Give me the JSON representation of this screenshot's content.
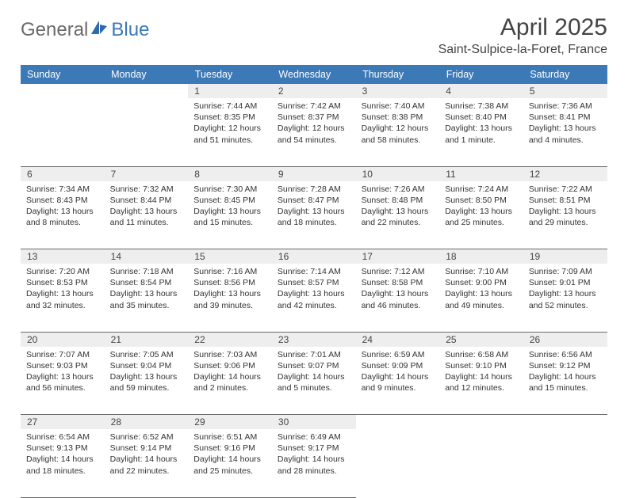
{
  "brand": {
    "part1": "General",
    "part2": "Blue"
  },
  "title": "April 2025",
  "location": "Saint-Sulpice-la-Foret, France",
  "colors": {
    "headerBg": "#3b79b7",
    "dayNumBg": "#eeeeee",
    "border": "#6a6a6a",
    "text": "#333333"
  },
  "weekdays": [
    "Sunday",
    "Monday",
    "Tuesday",
    "Wednesday",
    "Thursday",
    "Friday",
    "Saturday"
  ],
  "weeks": [
    [
      null,
      null,
      {
        "n": "1",
        "sr": "7:44 AM",
        "ss": "8:35 PM",
        "dl": "12 hours and 51 minutes."
      },
      {
        "n": "2",
        "sr": "7:42 AM",
        "ss": "8:37 PM",
        "dl": "12 hours and 54 minutes."
      },
      {
        "n": "3",
        "sr": "7:40 AM",
        "ss": "8:38 PM",
        "dl": "12 hours and 58 minutes."
      },
      {
        "n": "4",
        "sr": "7:38 AM",
        "ss": "8:40 PM",
        "dl": "13 hours and 1 minute."
      },
      {
        "n": "5",
        "sr": "7:36 AM",
        "ss": "8:41 PM",
        "dl": "13 hours and 4 minutes."
      }
    ],
    [
      {
        "n": "6",
        "sr": "7:34 AM",
        "ss": "8:43 PM",
        "dl": "13 hours and 8 minutes."
      },
      {
        "n": "7",
        "sr": "7:32 AM",
        "ss": "8:44 PM",
        "dl": "13 hours and 11 minutes."
      },
      {
        "n": "8",
        "sr": "7:30 AM",
        "ss": "8:45 PM",
        "dl": "13 hours and 15 minutes."
      },
      {
        "n": "9",
        "sr": "7:28 AM",
        "ss": "8:47 PM",
        "dl": "13 hours and 18 minutes."
      },
      {
        "n": "10",
        "sr": "7:26 AM",
        "ss": "8:48 PM",
        "dl": "13 hours and 22 minutes."
      },
      {
        "n": "11",
        "sr": "7:24 AM",
        "ss": "8:50 PM",
        "dl": "13 hours and 25 minutes."
      },
      {
        "n": "12",
        "sr": "7:22 AM",
        "ss": "8:51 PM",
        "dl": "13 hours and 29 minutes."
      }
    ],
    [
      {
        "n": "13",
        "sr": "7:20 AM",
        "ss": "8:53 PM",
        "dl": "13 hours and 32 minutes."
      },
      {
        "n": "14",
        "sr": "7:18 AM",
        "ss": "8:54 PM",
        "dl": "13 hours and 35 minutes."
      },
      {
        "n": "15",
        "sr": "7:16 AM",
        "ss": "8:56 PM",
        "dl": "13 hours and 39 minutes."
      },
      {
        "n": "16",
        "sr": "7:14 AM",
        "ss": "8:57 PM",
        "dl": "13 hours and 42 minutes."
      },
      {
        "n": "17",
        "sr": "7:12 AM",
        "ss": "8:58 PM",
        "dl": "13 hours and 46 minutes."
      },
      {
        "n": "18",
        "sr": "7:10 AM",
        "ss": "9:00 PM",
        "dl": "13 hours and 49 minutes."
      },
      {
        "n": "19",
        "sr": "7:09 AM",
        "ss": "9:01 PM",
        "dl": "13 hours and 52 minutes."
      }
    ],
    [
      {
        "n": "20",
        "sr": "7:07 AM",
        "ss": "9:03 PM",
        "dl": "13 hours and 56 minutes."
      },
      {
        "n": "21",
        "sr": "7:05 AM",
        "ss": "9:04 PM",
        "dl": "13 hours and 59 minutes."
      },
      {
        "n": "22",
        "sr": "7:03 AM",
        "ss": "9:06 PM",
        "dl": "14 hours and 2 minutes."
      },
      {
        "n": "23",
        "sr": "7:01 AM",
        "ss": "9:07 PM",
        "dl": "14 hours and 5 minutes."
      },
      {
        "n": "24",
        "sr": "6:59 AM",
        "ss": "9:09 PM",
        "dl": "14 hours and 9 minutes."
      },
      {
        "n": "25",
        "sr": "6:58 AM",
        "ss": "9:10 PM",
        "dl": "14 hours and 12 minutes."
      },
      {
        "n": "26",
        "sr": "6:56 AM",
        "ss": "9:12 PM",
        "dl": "14 hours and 15 minutes."
      }
    ],
    [
      {
        "n": "27",
        "sr": "6:54 AM",
        "ss": "9:13 PM",
        "dl": "14 hours and 18 minutes."
      },
      {
        "n": "28",
        "sr": "6:52 AM",
        "ss": "9:14 PM",
        "dl": "14 hours and 22 minutes."
      },
      {
        "n": "29",
        "sr": "6:51 AM",
        "ss": "9:16 PM",
        "dl": "14 hours and 25 minutes."
      },
      {
        "n": "30",
        "sr": "6:49 AM",
        "ss": "9:17 PM",
        "dl": "14 hours and 28 minutes."
      },
      null,
      null,
      null
    ]
  ],
  "labels": {
    "sunrise": "Sunrise:",
    "sunset": "Sunset:",
    "daylight": "Daylight:"
  }
}
